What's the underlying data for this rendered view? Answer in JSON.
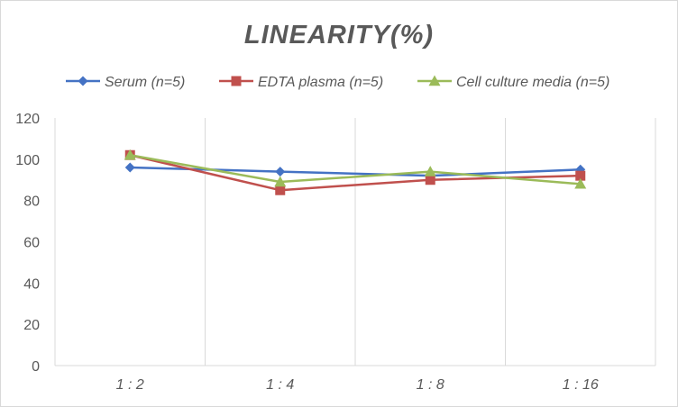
{
  "chart_data": {
    "type": "line",
    "title": "LINEARITY(%)",
    "xlabel": "",
    "ylabel": "",
    "categories": [
      "1:2",
      "1:4",
      "1:8",
      "1:16"
    ],
    "ylim": [
      0,
      120
    ],
    "yticks": [
      0,
      20,
      40,
      60,
      80,
      100,
      120
    ],
    "grid": "vertical",
    "legend_position": "top",
    "series": [
      {
        "name": "Serum (n=5)",
        "values": [
          96,
          94,
          92,
          95
        ],
        "color": "#4472c4",
        "marker": "diamond"
      },
      {
        "name": "EDTA plasma (n=5)",
        "values": [
          102,
          85,
          90,
          92
        ],
        "color": "#c0504d",
        "marker": "square"
      },
      {
        "name": "Cell culture media (n=5)",
        "values": [
          102,
          89,
          94,
          88
        ],
        "color": "#9bbb59",
        "marker": "triangle"
      }
    ]
  }
}
